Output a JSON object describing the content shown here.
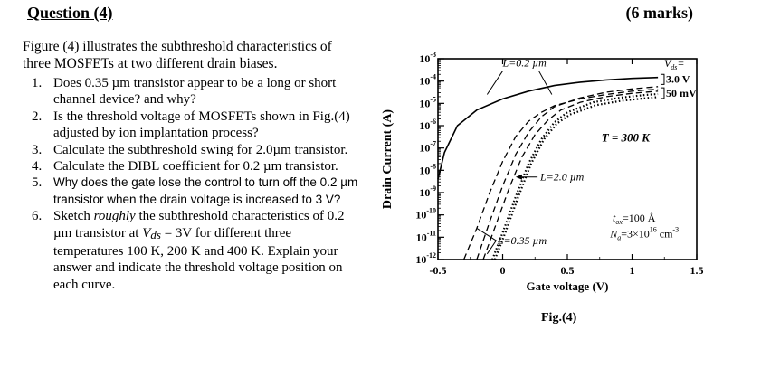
{
  "header": {
    "title": "Question (4)",
    "marks": "(6 marks)"
  },
  "intro": "Figure (4) illustrates the subthreshold characteristics of three MOSFETs at two different drain biases.",
  "questions": [
    {
      "num": "1.",
      "text": "Does 0.35 µm transistor appear to be a long or short channel device? and why?"
    },
    {
      "num": "2.",
      "text": "Is the threshold voltage of MOSFETs shown in Fig.(4) adjusted by ion implantation process?"
    },
    {
      "num": "3.",
      "text": "Calculate the subthreshold swing for 2.0µm transistor."
    },
    {
      "num": "4.",
      "text": "Calculate the DIBL coefficient for 0.2 µm transistor."
    },
    {
      "num": "5.",
      "text": "Why does the gate lose the control to turn off the 0.2 µm transistor when the drain voltage is increased to 3 V?"
    },
    {
      "num": "6.",
      "pre": "Sketch ",
      "em": "roughly",
      "mid": " the subthreshold characteristics of 0.2 µm transistor at ",
      "vsym": "V",
      "vsub": "ds",
      "post": " = 3V for different three temperatures 100 K, 200 K and 400 K. Explain your answer and indicate the threshold voltage position on each curve."
    }
  ],
  "figure_caption": "Fig.(4)",
  "chart_data": {
    "type": "line",
    "xlabel": "Gate voltage (V)",
    "ylabel": "Drain Current (A)",
    "x_ticks": [
      "-0.5",
      "0",
      "0.5",
      "1",
      "1.5"
    ],
    "x_tick_values": [
      -0.5,
      0,
      0.5,
      1,
      1.5
    ],
    "y_ticks": [
      {
        "exp": -3,
        "label": "10",
        "sup": "-3"
      },
      {
        "exp": -4,
        "label": "10",
        "sup": "-4"
      },
      {
        "exp": -5,
        "label": "10",
        "sup": "-5"
      },
      {
        "exp": -6,
        "label": "10",
        "sup": "-6"
      },
      {
        "exp": -7,
        "label": "10",
        "sup": "-7"
      },
      {
        "exp": -8,
        "label": "10",
        "sup": "-8"
      },
      {
        "exp": -9,
        "label": "10",
        "sup": "-9"
      },
      {
        "exp": -10,
        "label": "10",
        "sup": "-10"
      },
      {
        "exp": -11,
        "label": "10",
        "sup": "-11"
      },
      {
        "exp": -12,
        "label": "10",
        "sup": "-12"
      }
    ],
    "xlim": [
      -0.5,
      1.5
    ],
    "ylim_log10": [
      -12,
      -3
    ],
    "x_scale": "linear",
    "y_scale": "log",
    "series": [
      {
        "L": "0.2 µm",
        "vds": "3.0 V",
        "style": "solid",
        "x": [
          -0.5,
          -0.45,
          -0.35,
          -0.2,
          0,
          0.2,
          0.4,
          0.6,
          0.8,
          1.0,
          1.2
        ],
        "log_y": [
          -8.4,
          -7.2,
          -6.0,
          -5.3,
          -4.8,
          -4.45,
          -4.2,
          -4.05,
          -3.95,
          -3.88,
          -3.84
        ]
      },
      {
        "L": "0.2 µm",
        "vds": "50 mV",
        "style": "dashed",
        "x": [
          -0.3,
          -0.2,
          -0.1,
          0,
          0.1,
          0.2,
          0.3,
          0.4,
          0.6,
          0.8,
          1.0,
          1.2
        ],
        "log_y": [
          -12,
          -10.6,
          -9.0,
          -7.6,
          -6.5,
          -5.8,
          -5.4,
          -5.1,
          -4.8,
          -4.6,
          -4.45,
          -4.36
        ]
      },
      {
        "L": "0.35 µm",
        "vds": "3.0 V",
        "style": "dashed",
        "x": [
          -0.2,
          -0.1,
          0,
          0.1,
          0.2,
          0.3,
          0.4,
          0.6,
          0.8,
          1.0,
          1.2
        ],
        "log_y": [
          -12,
          -10.3,
          -8.7,
          -7.3,
          -6.3,
          -5.6,
          -5.15,
          -4.75,
          -4.5,
          -4.35,
          -4.25
        ]
      },
      {
        "L": "0.35 µm",
        "vds": "50 mV",
        "style": "dashed",
        "x": [
          -0.15,
          -0.05,
          0.05,
          0.15,
          0.25,
          0.35,
          0.45,
          0.6,
          0.8,
          1.0,
          1.2
        ],
        "log_y": [
          -12,
          -10.4,
          -8.8,
          -7.4,
          -6.4,
          -5.75,
          -5.3,
          -4.95,
          -4.7,
          -4.55,
          -4.45
        ]
      },
      {
        "L": "2.0 µm",
        "vds": "3.0 V",
        "style": "dotted",
        "x": [
          -0.08,
          0,
          0.1,
          0.2,
          0.3,
          0.4,
          0.5,
          0.7,
          0.9,
          1.1,
          1.2
        ],
        "log_y": [
          -12,
          -10.8,
          -9.2,
          -7.7,
          -6.6,
          -5.85,
          -5.4,
          -4.95,
          -4.75,
          -4.62,
          -4.58
        ]
      },
      {
        "L": "2.0 µm",
        "vds": "50 mV",
        "style": "dotted",
        "x": [
          -0.06,
          0.02,
          0.12,
          0.22,
          0.32,
          0.42,
          0.52,
          0.72,
          0.92,
          1.12,
          1.2
        ],
        "log_y": [
          -12,
          -10.8,
          -9.2,
          -7.7,
          -6.6,
          -5.9,
          -5.5,
          -5.08,
          -4.88,
          -4.76,
          -4.72
        ]
      }
    ],
    "annotations": {
      "label_02": "L=0.2 µm",
      "label_20": "L=2.0 µm",
      "label_035": "L=0.35 µm",
      "vds_title_sym": "V",
      "vds_title_sub": "ds",
      "vds_title_eq": "=",
      "vds_high": "3.0 V",
      "vds_low": "50 mV",
      "temperature": "T = 300 K",
      "tox_sym": "t",
      "tox_sub": "ox",
      "tox_val": "=100 Å",
      "na_sym": "N",
      "na_sub": "a",
      "na_val": "=3×10",
      "na_exp": "16",
      "na_unit": " cm",
      "na_unit_exp": "-3"
    }
  }
}
